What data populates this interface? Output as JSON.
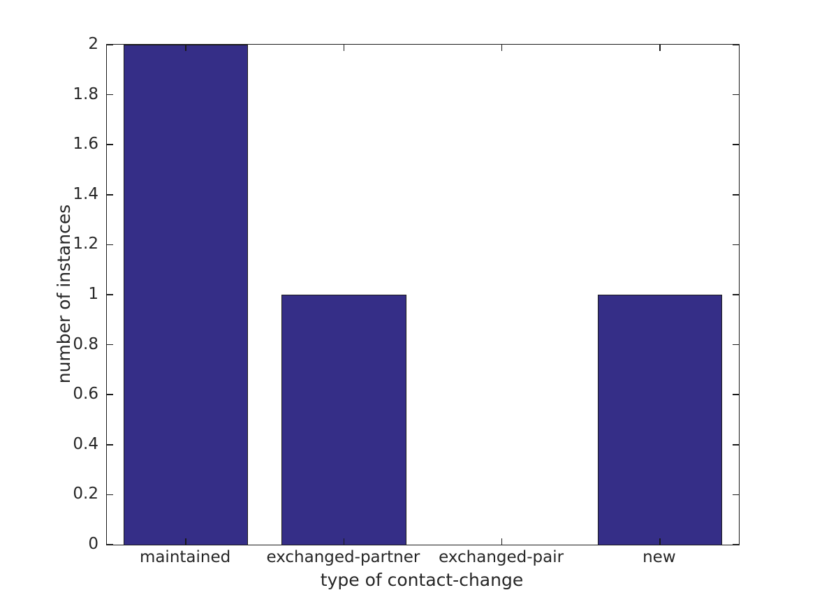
{
  "chart_data": {
    "type": "bar",
    "title": "",
    "xlabel": "type of contact-change",
    "ylabel": "number of instances",
    "categories": [
      "maintained",
      "exchanged-partner",
      "exchanged-pair",
      "new"
    ],
    "values": [
      2,
      1,
      0,
      1
    ],
    "ylim": [
      0,
      2
    ],
    "yticks": [
      0,
      0.2,
      0.4,
      0.6,
      0.8,
      1,
      1.2,
      1.4,
      1.6,
      1.8,
      2
    ],
    "ytick_labels": [
      "0",
      "0.2",
      "0.4",
      "0.6",
      "0.8",
      "1",
      "1.2",
      "1.4",
      "1.6",
      "1.8",
      "2"
    ],
    "bar_width_fraction": 0.79,
    "grid": false,
    "legend_position": "none",
    "tick_style": "inward-all-sides",
    "colors": {
      "bar_fill": "#352e87",
      "bar_edge": "#1a1a1a",
      "axis": "#1a1a1a",
      "text": "#262626",
      "background": "#ffffff"
    }
  }
}
